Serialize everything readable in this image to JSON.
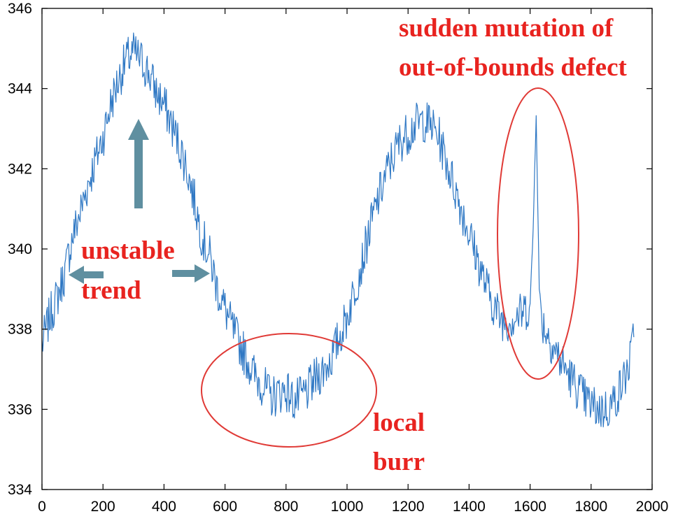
{
  "chart_data": {
    "type": "line",
    "title": "",
    "xlabel": "",
    "ylabel": "",
    "xlim": [
      0,
      2000
    ],
    "ylim": [
      334,
      346
    ],
    "x_ticks": [
      0,
      200,
      400,
      600,
      800,
      1000,
      1200,
      1400,
      1600,
      1800,
      2000
    ],
    "y_ticks": [
      334,
      336,
      338,
      340,
      342,
      344,
      346
    ],
    "grid": false,
    "legend": "none",
    "series": [
      {
        "color": "#2f78c4",
        "x": [
          0,
          25,
          50,
          75,
          100,
          125,
          150,
          175,
          200,
          225,
          250,
          275,
          300,
          325,
          350,
          375,
          400,
          425,
          450,
          475,
          500,
          525,
          550,
          575,
          600,
          625,
          650,
          675,
          700,
          725,
          750,
          775,
          800,
          825,
          850,
          875,
          900,
          925,
          950,
          975,
          1000,
          1025,
          1050,
          1075,
          1100,
          1125,
          1150,
          1175,
          1200,
          1225,
          1250,
          1275,
          1300,
          1325,
          1350,
          1375,
          1400,
          1425,
          1450,
          1475,
          1500,
          1525,
          1550,
          1575,
          1600,
          1610,
          1620,
          1630,
          1640,
          1650,
          1675,
          1700,
          1725,
          1750,
          1775,
          1800,
          1825,
          1850,
          1875,
          1900,
          1925,
          1940
        ],
        "y": [
          337.6,
          338.3,
          338.8,
          339.4,
          340.3,
          340.9,
          341.6,
          342.2,
          342.8,
          343.6,
          344.2,
          344.7,
          344.9,
          344.7,
          344.4,
          343.9,
          343.6,
          343.1,
          342.6,
          342.0,
          341.2,
          340.3,
          339.8,
          339.0,
          338.5,
          338.0,
          337.6,
          337.2,
          336.8,
          336.6,
          336.3,
          336.4,
          336.5,
          336.2,
          336.3,
          336.5,
          336.8,
          337.0,
          337.3,
          337.8,
          338.3,
          339.0,
          339.7,
          340.5,
          341.2,
          341.8,
          342.3,
          342.7,
          342.9,
          343.1,
          343.2,
          343.1,
          342.8,
          342.2,
          341.6,
          341.0,
          340.4,
          339.8,
          339.2,
          338.7,
          338.3,
          338.2,
          338.3,
          338.4,
          338.6,
          340.5,
          343.4,
          339.0,
          338.2,
          338.0,
          337.6,
          337.2,
          336.9,
          336.6,
          336.3,
          336.1,
          336.0,
          336.0,
          336.2,
          336.6,
          337.1,
          337.8
        ]
      }
    ],
    "annotations": [
      {
        "text": "sudden mutation of"
      },
      {
        "text": "out-of-bounds defect"
      },
      {
        "text": "unstable"
      },
      {
        "text": "trend"
      },
      {
        "text": "local"
      },
      {
        "text": "burr"
      }
    ]
  },
  "colors": {
    "line": "#2f78c4",
    "annotation_text": "#e8231f",
    "ellipse": "#e03a36",
    "arrow": "#5f8fa0"
  }
}
